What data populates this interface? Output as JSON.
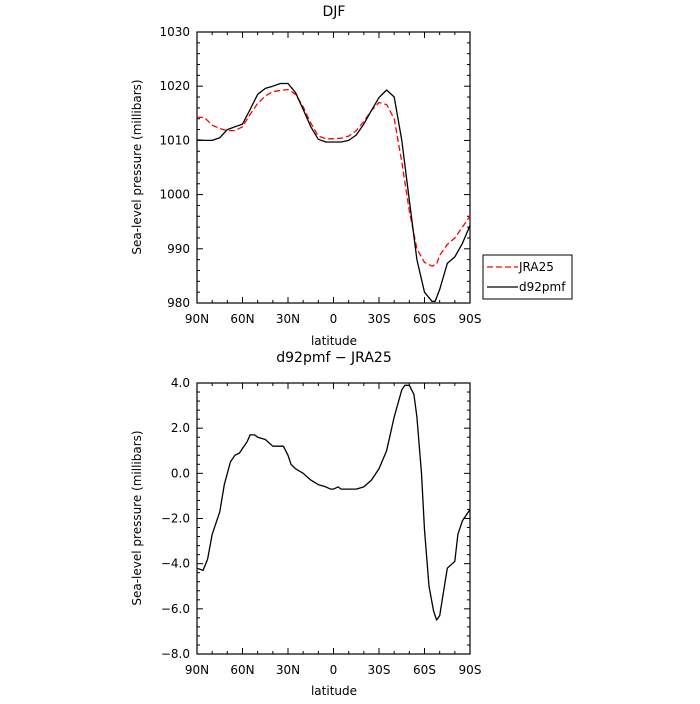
{
  "chart_data": [
    {
      "type": "line",
      "title": "DJF",
      "xlabel": "latitude",
      "ylabel": "Sea-level pressure (millibars)",
      "xlim": [
        90,
        -90
      ],
      "ylim": [
        980,
        1030
      ],
      "x_ticks": [
        90,
        60,
        30,
        0,
        -30,
        -60,
        -90
      ],
      "x_tick_labels": [
        "90N",
        "60N",
        "30N",
        "0",
        "30S",
        "60S",
        "90S"
      ],
      "y_ticks": [
        980,
        990,
        1000,
        1010,
        1020,
        1030
      ],
      "y_tick_labels": [
        "980",
        "990",
        "1000",
        "1010",
        "1020",
        "1030"
      ],
      "legend": "right",
      "grid": false,
      "series": [
        {
          "name": "JRA25",
          "color": "#ff0000",
          "dash": "dashed",
          "x": [
            90,
            85,
            80,
            75,
            70,
            65,
            60,
            55,
            50,
            45,
            40,
            35,
            30,
            25,
            20,
            15,
            10,
            5,
            0,
            -5,
            -10,
            -15,
            -20,
            -25,
            -30,
            -35,
            -40,
            -45,
            -50,
            -55,
            -60,
            -65,
            -68,
            -70,
            -75,
            -80,
            -85,
            -90
          ],
          "values": [
            1014.3,
            1014.2,
            1012.8,
            1012.2,
            1011.8,
            1011.8,
            1012.5,
            1014.8,
            1016.8,
            1018.2,
            1019.0,
            1019.2,
            1019.4,
            1018.5,
            1016.2,
            1013.2,
            1010.8,
            1010.3,
            1010.3,
            1010.4,
            1010.8,
            1011.8,
            1013.5,
            1015.5,
            1017.0,
            1016.6,
            1014.0,
            1006.0,
            997.0,
            990.0,
            987.5,
            986.8,
            987.2,
            988.8,
            990.8,
            992.0,
            994.0,
            996.0
          ]
        },
        {
          "name": "d92pmf",
          "color": "#000000",
          "dash": "solid",
          "x": [
            90,
            85,
            80,
            75,
            70,
            65,
            60,
            55,
            50,
            45,
            40,
            35,
            30,
            25,
            20,
            15,
            10,
            5,
            0,
            -5,
            -10,
            -15,
            -20,
            -25,
            -30,
            -35,
            -40,
            -45,
            -50,
            -55,
            -60,
            -65,
            -67,
            -70,
            -75,
            -80,
            -85,
            -90
          ],
          "values": [
            1010.1,
            1010.0,
            1010.0,
            1010.5,
            1012.0,
            1012.5,
            1013.0,
            1015.7,
            1018.5,
            1019.6,
            1020.0,
            1020.5,
            1020.5,
            1018.8,
            1015.7,
            1012.5,
            1010.2,
            1009.7,
            1009.7,
            1009.7,
            1010.0,
            1011.0,
            1013.0,
            1015.5,
            1017.9,
            1019.3,
            1018.0,
            1010.0,
            999.0,
            988.0,
            982.0,
            980.3,
            980.3,
            982.5,
            987.3,
            988.5,
            991.0,
            994.3
          ]
        }
      ]
    },
    {
      "type": "line",
      "title": "d92pmf − JRA25",
      "xlabel": "latitude",
      "ylabel": "Sea-level pressure (millibars)",
      "xlim": [
        90,
        -90
      ],
      "ylim": [
        -8,
        4
      ],
      "x_ticks": [
        90,
        60,
        30,
        0,
        -30,
        -60,
        -90
      ],
      "x_tick_labels": [
        "90N",
        "60N",
        "30N",
        "0",
        "30S",
        "60S",
        "90S"
      ],
      "y_ticks": [
        -8,
        -6,
        -4,
        -2,
        0,
        2,
        4
      ],
      "y_tick_labels": [
        "−8.0",
        "−6.0",
        "−4.0",
        "−2.0",
        "0.0",
        "2.0",
        "4.0"
      ],
      "grid": false,
      "series": [
        {
          "color": "#000000",
          "dash": "solid",
          "x": [
            90,
            86,
            83,
            80,
            75,
            72,
            68,
            65,
            62,
            60,
            57,
            55,
            52,
            50,
            45,
            40,
            37,
            33,
            30,
            28,
            25,
            20,
            15,
            10,
            5,
            2,
            0,
            -3,
            -5,
            -10,
            -15,
            -20,
            -25,
            -30,
            -35,
            -40,
            -45,
            -47,
            -50,
            -53,
            -55,
            -58,
            -60,
            -63,
            -66,
            -68,
            -70,
            -75,
            -80,
            -82,
            -85,
            -88,
            -90
          ],
          "values": [
            -4.2,
            -4.3,
            -3.8,
            -2.7,
            -1.7,
            -0.5,
            0.5,
            0.8,
            0.9,
            1.1,
            1.4,
            1.7,
            1.7,
            1.6,
            1.5,
            1.2,
            1.2,
            1.2,
            0.8,
            0.4,
            0.2,
            0.0,
            -0.3,
            -0.5,
            -0.6,
            -0.7,
            -0.7,
            -0.6,
            -0.7,
            -0.7,
            -0.7,
            -0.6,
            -0.3,
            0.2,
            1.0,
            2.5,
            3.7,
            3.9,
            3.9,
            3.5,
            2.5,
            0.0,
            -2.5,
            -5.0,
            -6.1,
            -6.5,
            -6.3,
            -4.2,
            -3.9,
            -2.7,
            -2.1,
            -1.8,
            -1.6
          ]
        }
      ]
    }
  ]
}
